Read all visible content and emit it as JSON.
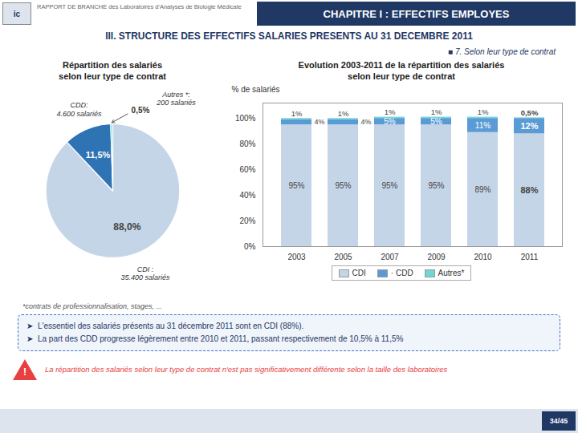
{
  "title": "III. STRUCTURE DES EFFECTIFS SALARIES PRESENTS AU 31 DECEMBRE 2011",
  "subtitle": "■ 7. Selon leur type de contrat",
  "annotations": [
    "ic",
    "RAPPORT DE BRANCHE des Laboratoires d'Analyses de Biologie Médicale",
    "CHAPITRE I : EFFECTIFS EMPLOYES",
    "*contrats de professionnalisation, stages, ...",
    "➤  L'essentiel des salariés présents au 31 décembre 2011 sont en CDI (88%).",
    "➤  La part des CDD progresse légèrement entre 2010 et 2011, passant respectivement de 10,5% à 11,5%",
    "!",
    "La répartition des salariés selon leur type de contrat n'est pas significativement différente selon la taille des laboratoires",
    "34/45"
  ],
  "chart_data": [
    {
      "type": "pie",
      "title": "Répartition des salariés\nselon leur type de contrat",
      "categories": [
        "CDI :\n35.400 salariés",
        "CDD:\n4.600 salariés",
        "Autres *:\n200 salariés"
      ],
      "values": [
        88.0,
        11.5,
        0.5
      ],
      "value_labels": [
        "88,0%",
        "11,5%",
        "0,5%"
      ],
      "colors": [
        "#c5d5e8",
        "#2e74b5",
        "#70d7d7"
      ],
      "data_labels": true
    },
    {
      "type": "bar",
      "title": "Evolution 2003-2011 de la répartition des salariés\nselon leur type de contrat",
      "stacked": true,
      "categories": [
        "2003",
        "2005",
        "2007",
        "2009",
        "2010",
        "2011"
      ],
      "series": [
        {
          "name": "CDI",
          "color": "#c5d5e8",
          "values": [
            95,
            95,
            95,
            95,
            89,
            88
          ],
          "value_labels": [
            "95%",
            "95%",
            "95%",
            "95%",
            "89%",
            "88%"
          ]
        },
        {
          "name": "· CDD",
          "color": "#5b9bd5",
          "values": [
            4,
            4,
            5,
            5,
            11,
            12
          ],
          "value_labels": [
            "4%",
            "4%",
            "5%",
            "5%",
            "11%",
            "12%"
          ]
        },
        {
          "name": "Autres*",
          "color": "#70d7d7",
          "values": [
            1,
            1,
            1,
            1,
            1,
            0.5
          ],
          "value_labels": [
            "1%",
            "1%",
            "1%",
            "1%",
            "1%",
            "0,5%"
          ]
        }
      ],
      "ylabel": "% de salariés",
      "ylim": [
        0,
        112
      ],
      "yticks": [
        {
          "value": 0,
          "label": "0%"
        },
        {
          "value": 20,
          "label": "20%"
        },
        {
          "value": 40,
          "label": "40%"
        },
        {
          "value": 60,
          "label": "60%"
        },
        {
          "value": 80,
          "label": "80%"
        },
        {
          "value": 100,
          "label": "100%"
        }
      ],
      "data_labels": true,
      "legend": "bottom",
      "grid": false
    }
  ]
}
